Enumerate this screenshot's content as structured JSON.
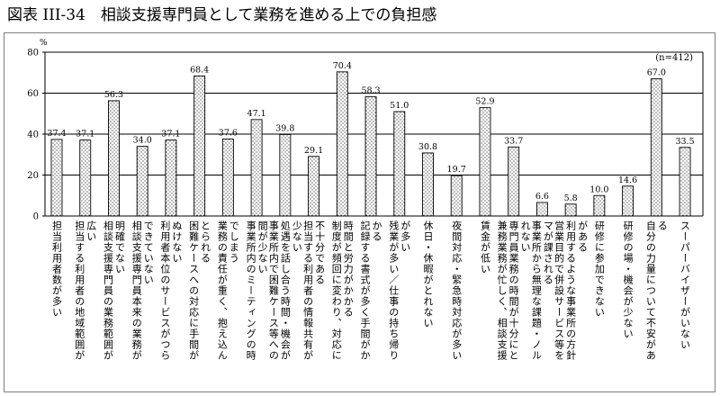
{
  "chart_data": {
    "type": "bar",
    "title": "図表 III-34　相談支援専門員として業務を進める上での負担感",
    "ylabel": "%",
    "note": "(n=412)",
    "ylim": [
      0,
      80
    ],
    "yticks": [
      0,
      20,
      40,
      60,
      80
    ],
    "grid": true,
    "categories": [
      "担当利用者数が多い",
      "担当する利用者の地域範囲が広い",
      "相談支援専門員の業務範囲が明確でない",
      "相談支援専門員本来の業務ができていない",
      "利用者本位のサービスがつらぬけない",
      "困難ケースへの対応に手間がとられる",
      "業務の責任が重く、抱え込んでしまう",
      "事業所内のミーティングの時間が少ない",
      "事業所内で困難ケース等への処遇を話し合う時間・機会が少ない",
      "担当する利用者の情報共有が不十分である",
      "制度が頻回に変わり、対応に時間と労力がかかる",
      "記録する書式が多く手間がかかる",
      "残業が多い／仕事の持ち帰りが多い",
      "休日・休暇がとれない",
      "夜間対応・緊急時対応が多い",
      "賃金が低い",
      "兼務業務が忙しく、相談支援専門員業務の時間が十分にとれない",
      "事業所から無理な課題・ノルマが課される",
      "営業目的で併設サービス等を利用するような事業所の方針がある",
      "研修に参加できない",
      "研修の場・機会が少ない",
      "自分の力量について不安がある",
      "スーパーバイザーがいない"
    ],
    "values": [
      37.4,
      37.1,
      56.3,
      34.0,
      37.1,
      68.4,
      37.6,
      47.1,
      39.8,
      29.1,
      70.4,
      58.3,
      51.0,
      30.8,
      19.7,
      52.9,
      33.7,
      6.6,
      5.8,
      10.0,
      14.6,
      67.0,
      33.5
    ],
    "data_labels": [
      "37.4",
      "37.1",
      "56.3",
      "34.0",
      "37.1",
      "68.4",
      "37.6",
      "47.1",
      "39.8",
      "29.1",
      "70.4",
      "58.3",
      "51.0",
      "30.8",
      "19.7",
      "52.9",
      "33.7",
      "6.6",
      "5.8",
      "10.0",
      "14.6",
      "67.0",
      "33.5"
    ]
  },
  "colors": {
    "bar_outline": "#000000",
    "bar_fill": "#ffffff",
    "bar_dots": "#000000",
    "gridline": "#000000",
    "axis": "#000000"
  }
}
